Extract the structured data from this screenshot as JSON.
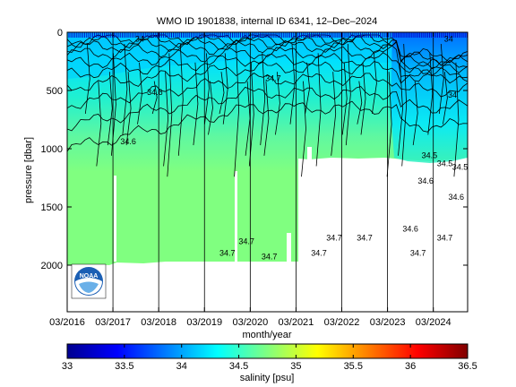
{
  "chart_data": {
    "type": "heatmap",
    "title": "WMO ID 1901838, internal ID 6341, 12–Dec–2024",
    "xlabel": "month/year",
    "ylabel": "pressure [dbar]",
    "x_ticks": [
      "03/2016",
      "03/2017",
      "03/2018",
      "03/2019",
      "03/2020",
      "03/2021",
      "03/2022",
      "03/2023",
      "03/2024"
    ],
    "x_range": [
      "2016-03",
      "2024-12"
    ],
    "y_ticks": [
      0,
      500,
      1000,
      1500,
      2000
    ],
    "y_range": [
      2400,
      0
    ],
    "y_reversed": true,
    "colorbar": {
      "label": "salinity [psu]",
      "ticks": [
        "33",
        "33.5",
        "34",
        "34.5",
        "35",
        "35.5",
        "36",
        "36.5"
      ],
      "range": [
        33,
        36.5
      ],
      "colormap": "jet"
    },
    "contour_labels": [
      {
        "text": "34.7",
        "x": "2020-02",
        "y": 1820
      },
      {
        "text": "34.7",
        "x": "2019-09",
        "y": 1920
      },
      {
        "text": "34.7",
        "x": "2020-08",
        "y": 1950
      },
      {
        "text": "34.7",
        "x": "2021-09",
        "y": 1920
      },
      {
        "text": "34.7",
        "x": "2022-01",
        "y": 1790
      },
      {
        "text": "34.7",
        "x": "2022-09",
        "y": 1790
      },
      {
        "text": "34.6",
        "x": "2023-09",
        "y": 1710
      },
      {
        "text": "34.7",
        "x": "2024-06",
        "y": 1790
      },
      {
        "text": "34.7",
        "x": "2023-11",
        "y": 1920
      },
      {
        "text": "34.6",
        "x": "2024-01",
        "y": 1300
      },
      {
        "text": "34.6",
        "x": "2024-09",
        "y": 1440
      },
      {
        "text": "34.5",
        "x": "2024-02",
        "y": 1080
      },
      {
        "text": "34.5",
        "x": "2024-06",
        "y": 1150
      },
      {
        "text": "34.5",
        "x": "2024-10",
        "y": 1180
      },
      {
        "text": "34.6",
        "x": "2017-07",
        "y": 960
      },
      {
        "text": "34.7",
        "x": "2020-09",
        "y": 420
      },
      {
        "text": "34.6",
        "x": "2018-02",
        "y": 540
      },
      {
        "text": "34",
        "x": "2017-10",
        "y": 80
      },
      {
        "text": "34",
        "x": "2024-07",
        "y": 80
      },
      {
        "text": "34",
        "x": "2024-08",
        "y": 560
      }
    ],
    "grid": false,
    "legend": "none",
    "profile_lines_x": [
      "2016-03",
      "2017-03",
      "2018-03",
      "2019-03",
      "2020-03",
      "2021-03",
      "2022-03",
      "2023-03",
      "2024-03"
    ]
  },
  "logo": {
    "text": "NOAA"
  },
  "colors": {
    "plateau": "#80ff80",
    "missing": "#ffffff",
    "band_fresh": "#00ccff",
    "band_mid": "#20e8cc",
    "band_salty": "#60f8a0"
  }
}
